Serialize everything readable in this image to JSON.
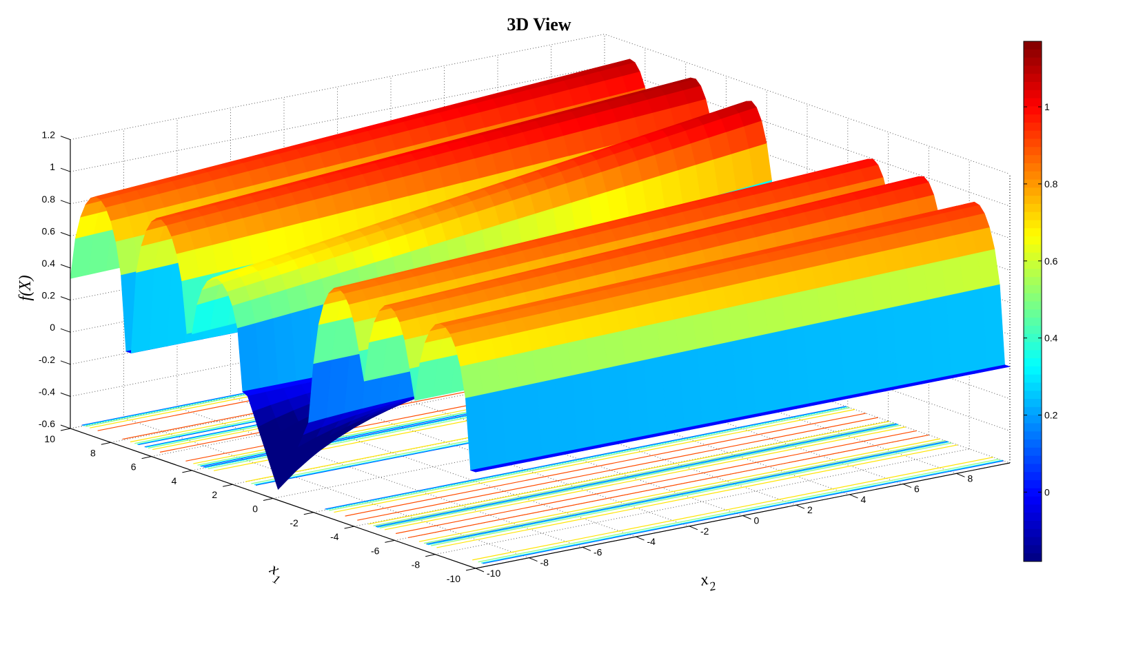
{
  "chart_data": {
    "type": "surface",
    "title": "3D View",
    "xlabel": "x1",
    "ylabel": "x2",
    "zlabel": "f(X)",
    "x1_ticks": [
      -10,
      -8,
      -6,
      -4,
      -2,
      0,
      2,
      4,
      6,
      8,
      10
    ],
    "x2_ticks": [
      -10,
      -8,
      -6,
      -4,
      -2,
      0,
      2,
      4,
      6,
      8
    ],
    "z_ticks": [
      -0.6,
      -0.4,
      -0.2,
      0,
      0.2,
      0.4,
      0.6,
      0.8,
      1,
      1.2
    ],
    "x1_range": [
      -10,
      10
    ],
    "x2_range": [
      -10,
      10
    ],
    "z_range": [
      -0.6,
      1.2
    ],
    "grid": true,
    "colormap": "jet",
    "ridges": [
      {
        "x1": 8.7,
        "half_width": 1.4,
        "peak_at_x2_min": 0.9,
        "peak_at_x2_max": 1.1
      },
      {
        "x1": 5.6,
        "half_width": 1.4,
        "peak_at_x2_min": 0.9,
        "peak_at_x2_max": 1.12
      },
      {
        "x1": 2.8,
        "half_width": 1.3,
        "peak_at_x2_min": 0.65,
        "peak_at_x2_max": 1.1
      },
      {
        "x1": -3.2,
        "half_width": 1.3,
        "peak_at_x2_min": 0.85,
        "peak_at_x2_max": 1.0
      },
      {
        "x1": -5.7,
        "half_width": 1.3,
        "peak_at_x2_min": 0.85,
        "peak_at_x2_max": 1.0
      },
      {
        "x1": -8.3,
        "half_width": 1.4,
        "peak_at_x2_min": 0.85,
        "peak_at_x2_max": 0.95
      }
    ],
    "minimum": {
      "x1": -0.3,
      "x2": -10,
      "z": -0.55
    },
    "colorbar": {
      "ticks": [
        0,
        0.2,
        0.4,
        0.6,
        0.8,
        1
      ],
      "range": [
        -0.18,
        1.17
      ]
    }
  }
}
